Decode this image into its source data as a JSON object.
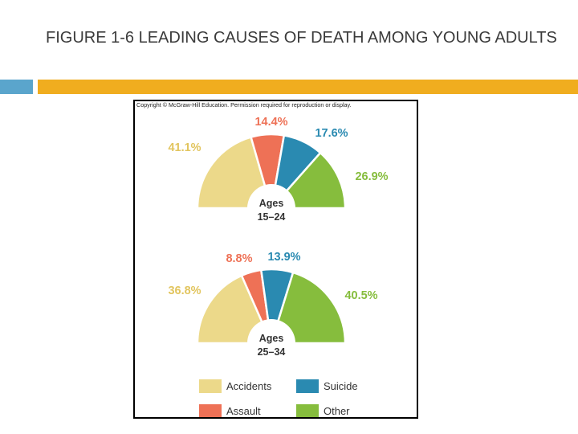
{
  "title": {
    "prefix": "FIGURE 1-6",
    "text": "LEADING CAUSES OF DEATH AMONG YOUNG ADULTS"
  },
  "colors": {
    "accidents": "#ecd98a",
    "assault": "#ee7156",
    "suicide": "#2a8ab1",
    "other": "#86bd3d",
    "bar_blue": "#5aa5cc",
    "bar_gold": "#f0ad1f"
  },
  "chart_data": {
    "type": "pie",
    "title": "FIGURE 1-6 LEADING CAUSES OF DEATH AMONG YOUNG ADULTS",
    "copyright": "Copyright © McGraw-Hill Education. Permission required for reproduction or display.",
    "categories": [
      "Accidents",
      "Assault",
      "Suicide",
      "Other"
    ],
    "charts": [
      {
        "group_label": "Ages",
        "group_range": "15–24",
        "values": [
          41.1,
          14.4,
          17.6,
          26.9
        ],
        "labels": [
          "41.1%",
          "14.4%",
          "17.6%",
          "26.9%"
        ]
      },
      {
        "group_label": "Ages",
        "group_range": "25–34",
        "values": [
          36.8,
          8.8,
          13.9,
          40.5
        ],
        "labels": [
          "36.8%",
          "8.8%",
          "13.9%",
          "40.5%"
        ]
      }
    ],
    "legend": [
      {
        "label": "Accidents",
        "color": "#ecd98a"
      },
      {
        "label": "Suicide",
        "color": "#2a8ab1"
      },
      {
        "label": "Assault",
        "color": "#ee7156"
      },
      {
        "label": "Other",
        "color": "#86bd3d"
      }
    ]
  }
}
